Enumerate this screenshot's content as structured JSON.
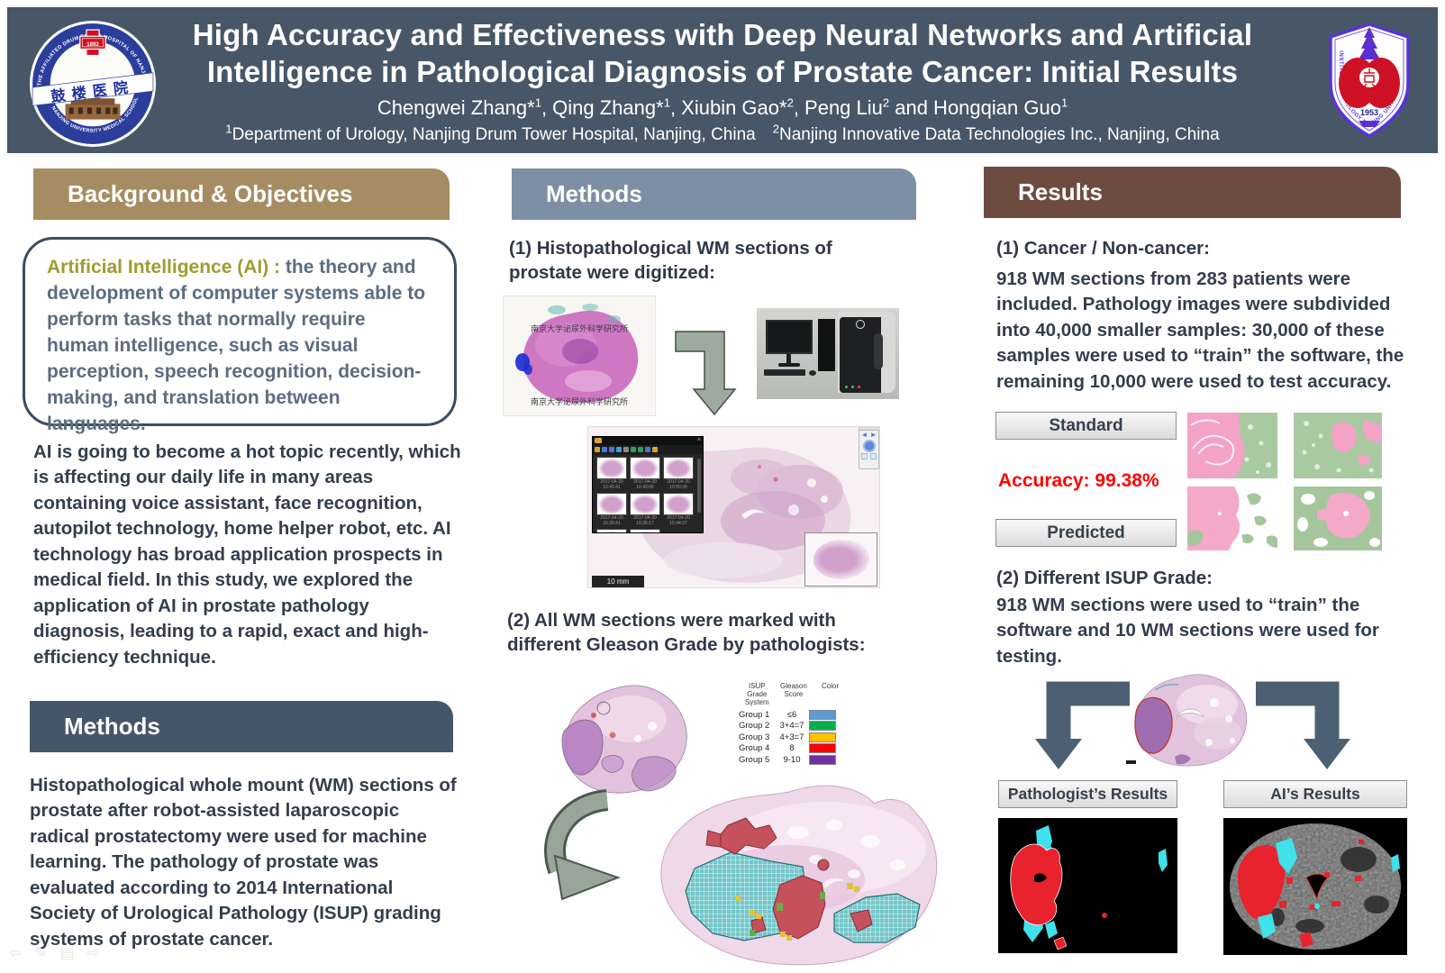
{
  "colors": {
    "masthead_bg": "#475768",
    "background_band": "#a68c62",
    "methods_left_band": "#46566a",
    "methods_mid_band": "#7d8fa4",
    "results_band": "#6e4b40",
    "body_text": "#333e4e",
    "ai_highlight": "#a19b2e",
    "accuracy_red": "#ff0000"
  },
  "header": {
    "title_line1": "High Accuracy and Effectiveness with Deep Neural Networks and Artificial",
    "title_line2": "Intelligence in Pathological Diagnosis of Prostate Cancer: Initial Results",
    "authors": [
      {
        "text": "Chengwei Zhang*",
        "sup": "1"
      },
      {
        "text": ", Qing Zhang*",
        "sup": "1"
      },
      {
        "text": ", Xiubin Gao*",
        "sup": "2"
      },
      {
        "text": ", Peng Liu",
        "sup": "2"
      },
      {
        "text": " and Hongqian Guo",
        "sup": "1"
      }
    ],
    "affiliations": [
      {
        "sup": "1",
        "text": "Department of Urology, Nanjing Drum Tower Hospital, Nanjing, China"
      },
      {
        "sup": "2",
        "text": "Nanjing Innovative Data Technologies Inc., Nanjing, China"
      }
    ],
    "left_logo": {
      "ring_text_top": "THE AFFILIATED DRUM TOWER HOSPITAL OF NANJING UNIVERSITY",
      "ring_text_bottom": "NANJING UNIVERSITY MEDICAL SCHOOL",
      "banner_text": "鼓楼医院",
      "cross_year": "1892"
    },
    "right_logo": {
      "ring_text": "INSTITUTE OF UROLOGY NANJING UNIVERSITY",
      "year": "1953"
    }
  },
  "background_section": {
    "title": "Background & Objectives",
    "box_highlight": "Artificial Intelligence (AI) :",
    "box_text": " the theory and development of computer systems able to perform tasks that normally require human intelligence, such as visual perception, speech recognition, decision-making, and translation between languages.",
    "paragraph": "AI is going to become a hot topic recently, which is affecting our daily life in many areas containing voice assistant, face recognition, autopilot technology, home helper robot, etc. AI technology has broad application prospects in medical field. In this study, we explored the application of AI in prostate pathology diagnosis, leading to a rapid, exact and high-efficiency technique."
  },
  "methods_left": {
    "title": "Methods",
    "paragraph": "Histopathological whole mount (WM) sections of prostate after robot-assisted laparoscopic radical prostatectomy were used for machine learning. The pathology of prostate was evaluated according to 2014 International Society of Urological Pathology (ISUP) grading systems of prostate cancer."
  },
  "methods_middle": {
    "title": "Methods",
    "step1": "(1) Histopathological  WM sections of prostate were digitized:",
    "step2": "(2) All WM sections were marked with different Gleason Grade by pathologists:",
    "slide_label_top": "南京大学泌尿外科学研究所",
    "slide_label_bottom": "南京大学泌尿外科学研究所",
    "viewer": {
      "scale_label": "10 mm",
      "thumbnails": [
        {
          "line1": "2017-04-20",
          "line2": "10:41:41"
        },
        {
          "line1": "2017-04-20",
          "line2": "10:43:06"
        },
        {
          "line1": "2017-04-20",
          "line2": "10:50:39"
        },
        {
          "line1": "2017-04-20",
          "line2": "15:30:41"
        },
        {
          "line1": "2017-04-20",
          "line2": "15:36:17"
        },
        {
          "line1": "2017-04-20",
          "line2": "15:44:37"
        },
        {
          "line1": "",
          "line2": ""
        },
        {
          "line1": "",
          "line2": ""
        }
      ]
    },
    "legend": {
      "headers": [
        "ISUP Grade System",
        "Gleason Score",
        "Color"
      ],
      "rows": [
        {
          "group": "Group 1",
          "score": "≤6",
          "color": "#5b9bd5"
        },
        {
          "group": "Group 2",
          "score": "3+4=7",
          "color": "#00b050"
        },
        {
          "group": "Group 3",
          "score": "4+3=7",
          "color": "#ffc000"
        },
        {
          "group": "Group 4",
          "score": "8",
          "color": "#ff0000"
        },
        {
          "group": "Group 5",
          "score": "9-10",
          "color": "#7030a0"
        }
      ]
    }
  },
  "results": {
    "title": "Results",
    "s1_title": "(1) Cancer / Non-cancer:",
    "s1_paragraph": "918 WM sections from 283 patients were included. Pathology images were subdivided into 40,000 smaller samples: 30,000 of these samples were used to “train” the software, the remaining 10,000 were used to test accuracy.",
    "standard_label": "Standard",
    "accuracy_label": "Accuracy: 99.38%",
    "predicted_label": "Predicted",
    "s2_title": "(2) Different ISUP Grade:",
    "s2_paragraph": "918 WM sections were used to “train” the software and 10 WM sections were used for testing.",
    "pathologist_label": "Pathologist’s Results",
    "ai_label": "AI’s Results"
  },
  "presenter_nav": [
    {
      "name": "previous-slide-icon",
      "glyph": "⇦"
    },
    {
      "name": "pen-tool-icon",
      "glyph": "✎"
    },
    {
      "name": "slide-menu-icon",
      "glyph": "▤"
    },
    {
      "name": "next-slide-icon",
      "glyph": "⇨"
    }
  ]
}
